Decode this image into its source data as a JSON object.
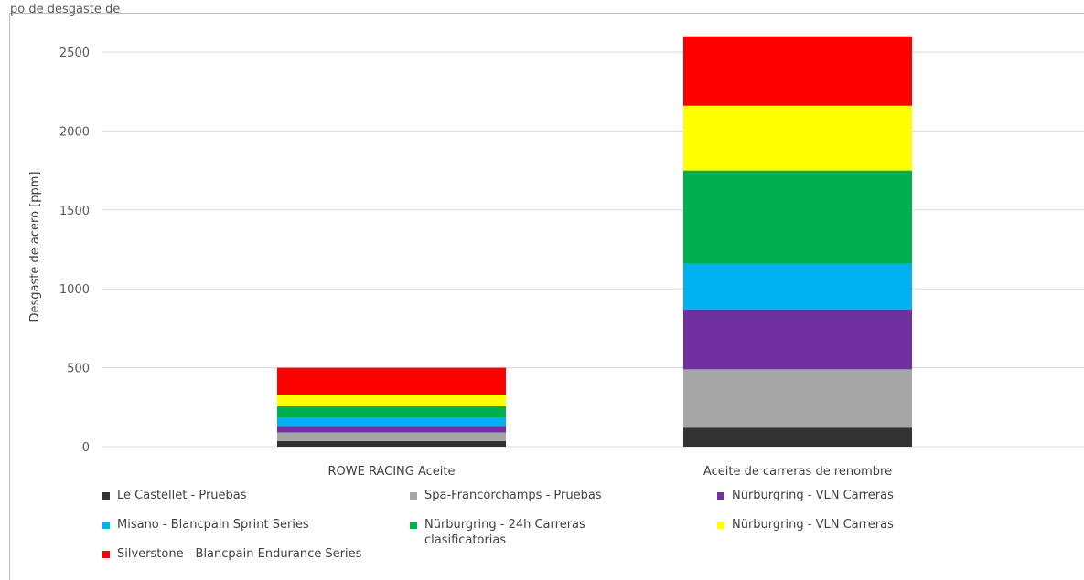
{
  "chart_data": {
    "type": "bar",
    "stacked": true,
    "title": "",
    "xlabel": "",
    "ylabel": "Desgaste de acero [ppm]",
    "ylim": [
      0,
      2600
    ],
    "yticks": [
      0,
      500,
      1000,
      1500,
      2000,
      2500
    ],
    "grid": true,
    "legend_position": "bottom",
    "categories": [
      "ROWE RACING Aceite",
      "Aceite de carreras de renombre"
    ],
    "series": [
      {
        "name": "Le Castellet - Pruebas",
        "color": "#333333",
        "values": [
          35,
          120
        ]
      },
      {
        "name": "Spa-Francorchamps - Pruebas",
        "color": "#a6a6a6",
        "values": [
          55,
          370
        ]
      },
      {
        "name": "Nürburgring - VLN Carreras",
        "color": "#7030a0",
        "values": [
          40,
          380
        ]
      },
      {
        "name": "Misano - Blancpain Sprint Series",
        "color": "#00b0f0",
        "values": [
          55,
          290
        ]
      },
      {
        "name": "Nürburgring - 24h Carreras clasificatorias",
        "color": "#00b050",
        "values": [
          70,
          590
        ]
      },
      {
        "name": "Nürburgring - VLN Carreras",
        "color": "#ffff00",
        "values": [
          75,
          410
        ]
      },
      {
        "name": "Silverstone - Blancpain Endurance Series",
        "color": "#ff0000",
        "values": [
          170,
          440
        ]
      }
    ]
  },
  "header": {
    "cut_title": "po de desgaste de"
  }
}
